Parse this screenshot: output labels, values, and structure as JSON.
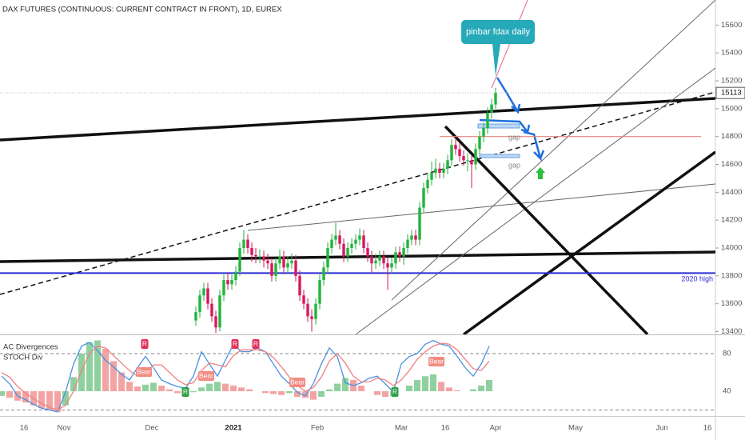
{
  "chart_data": [
    {
      "type": "candlestick",
      "title": "DAX FUTURES (CONTINUOUS: CURRENT CONTRACT IN FRONT), 1D, EUREX",
      "open": [
        13480,
        13540,
        13660,
        13710,
        13600,
        13510,
        13430,
        13660,
        13770,
        13740,
        13770,
        13830,
        14000,
        14060,
        14000,
        13950,
        13940,
        13940,
        13910,
        13890,
        13800,
        13890,
        13940,
        13860,
        13890,
        13910,
        13800,
        13660,
        13600,
        13510,
        13490,
        13600,
        13770,
        13860,
        14000,
        14060,
        14090,
        14030,
        13940,
        14000,
        14030,
        14060,
        14090,
        14000,
        13940,
        13890,
        13910,
        13940,
        13890,
        13860,
        13890,
        13970,
        13940,
        14000,
        14060,
        14090,
        14060,
        14290,
        14430,
        14490,
        14540,
        14570,
        14540,
        14570,
        14630,
        14740,
        14710,
        14660,
        14630,
        14630,
        14600,
        14710,
        14800,
        14860,
        14970,
        15030
      ],
      "high": [
        13580,
        13700,
        13750,
        13750,
        13640,
        13550,
        13700,
        13810,
        13820,
        13810,
        13870,
        14040,
        14130,
        14100,
        14040,
        14000,
        13990,
        13980,
        13960,
        13930,
        13930,
        13990,
        13980,
        13940,
        13960,
        13950,
        13840,
        13700,
        13640,
        13560,
        13640,
        13810,
        13900,
        14040,
        14100,
        14180,
        14130,
        14070,
        14040,
        14070,
        14100,
        14140,
        14130,
        14040,
        13980,
        13960,
        13980,
        13980,
        13930,
        13930,
        14010,
        14010,
        14040,
        14100,
        14130,
        14130,
        14330,
        14470,
        14530,
        14620,
        14640,
        14610,
        14610,
        14670,
        14780,
        14790,
        14750,
        14700,
        14680,
        14670,
        14750,
        14840,
        14900,
        15010,
        15070,
        15150
      ],
      "low": [
        13440,
        13500,
        13620,
        13560,
        13470,
        13390,
        13400,
        13620,
        13700,
        13700,
        13730,
        13800,
        13960,
        13960,
        13900,
        13890,
        13890,
        13860,
        13850,
        13760,
        13760,
        13850,
        13820,
        13820,
        13850,
        13760,
        13620,
        13560,
        13470,
        13400,
        13450,
        13560,
        13730,
        13820,
        13960,
        14020,
        13990,
        13900,
        13900,
        13960,
        13990,
        14020,
        13960,
        13900,
        13820,
        13850,
        13870,
        13850,
        13700,
        13820,
        13850,
        13900,
        13880,
        13960,
        14020,
        14020,
        14020,
        14250,
        14390,
        14450,
        14500,
        14500,
        14500,
        14530,
        14590,
        14670,
        14620,
        14590,
        14550,
        14430,
        14560,
        14670,
        14760,
        14820,
        14930,
        15000
      ],
      "close": [
        13540,
        13660,
        13710,
        13600,
        13510,
        13430,
        13660,
        13770,
        13740,
        13770,
        13830,
        14000,
        14060,
        14000,
        13950,
        13940,
        13940,
        13910,
        13890,
        13800,
        13890,
        13940,
        13860,
        13890,
        13910,
        13800,
        13660,
        13600,
        13510,
        13490,
        13600,
        13770,
        13860,
        14000,
        14060,
        14090,
        14030,
        13940,
        14000,
        14030,
        14060,
        14090,
        14000,
        13940,
        13890,
        13910,
        13940,
        13890,
        13860,
        13890,
        13970,
        13940,
        14000,
        14060,
        14090,
        14060,
        14290,
        14430,
        14490,
        14540,
        14570,
        14540,
        14570,
        14630,
        14740,
        14710,
        14660,
        14630,
        14630,
        14600,
        14710,
        14800,
        14860,
        14970,
        15030,
        15113
      ],
      "up_color": "#22b43c",
      "down_color": "#d6175f",
      "ylim": [
        13380,
        15780
      ],
      "yticks": [
        15600,
        15400,
        15200,
        15000,
        14800,
        14600,
        14400,
        14200,
        14000,
        13800,
        13600,
        13400
      ],
      "reference_lines": [
        {
          "label": "2020 high",
          "value": 13820,
          "color": "#2b2bd6"
        },
        {
          "value": 14800,
          "color": "#e8837d"
        }
      ],
      "annotations": [
        "pinbar fdax daily",
        "gap",
        "gap"
      ],
      "x_labels": [
        "16",
        "Nov",
        "Dec",
        "2021",
        "Feb",
        "Mar",
        "16",
        "Apr",
        "May",
        "Jun",
        "16"
      ]
    },
    {
      "type": "oscillator",
      "title": "AC Divergences",
      "subtitle": "STOCH Div",
      "histogram": {
        "values": [
          35,
          33,
          30,
          28,
          25,
          22,
          20,
          18,
          25,
          55,
          80,
          92,
          94,
          85,
          72,
          60,
          50,
          45,
          47,
          49,
          46,
          42,
          38,
          37,
          39,
          44,
          48,
          50,
          48,
          46,
          44,
          42,
          40,
          38,
          37,
          36,
          38,
          34,
          33,
          31,
          34,
          42,
          48,
          54,
          52,
          46,
          40,
          36,
          34,
          35,
          40,
          46,
          52,
          56,
          58,
          50,
          44,
          41,
          40,
          42,
          46,
          52
        ],
        "up_color": "#8fd19e",
        "down_color": "#f2a3a3",
        "base": 40
      },
      "series": [
        {
          "color": "#4a90e2",
          "values": [
            56,
            48,
            35,
            31,
            26,
            22,
            20,
            18,
            39,
            69,
            88,
            92,
            83,
            73,
            66,
            58,
            52,
            65,
            77,
            65,
            52,
            48,
            45,
            43,
            56,
            82,
            69,
            56,
            73,
            90,
            82,
            82,
            86,
            82,
            69,
            56,
            48,
            39,
            35,
            48,
            69,
            86,
            77,
            49,
            46,
            49,
            54,
            56,
            48,
            39,
            69,
            77,
            80,
            90,
            94,
            90,
            88,
            77,
            65,
            56,
            69,
            88
          ]
        },
        {
          "color": "#f08080",
          "values": [
            60,
            55,
            45,
            38,
            32,
            27,
            23,
            20,
            25,
            40,
            62,
            80,
            88,
            86,
            78,
            70,
            62,
            56,
            60,
            68,
            68,
            60,
            52,
            47,
            49,
            62,
            70,
            68,
            66,
            78,
            84,
            84,
            84,
            82,
            76,
            66,
            55,
            46,
            40,
            44,
            55,
            72,
            80,
            70,
            56,
            50,
            50,
            54,
            52,
            46,
            52,
            62,
            74,
            82,
            88,
            91,
            90,
            84,
            74,
            64,
            62,
            72
          ]
        }
      ],
      "ylim": [
        14,
        100
      ],
      "yticks": [
        80,
        40
      ],
      "levels": [
        80,
        20
      ],
      "signals": [
        "R",
        "R",
        "R",
        "Bear",
        "Bear",
        "Bear",
        "Bear",
        "R",
        "R"
      ]
    }
  ]
}
